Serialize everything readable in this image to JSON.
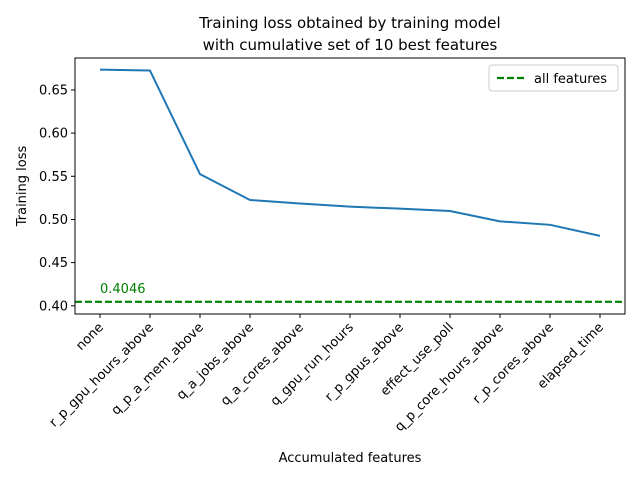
{
  "chart_data": {
    "type": "line",
    "title_line1": "Training loss obtained by training model",
    "title_line2": "with cumulative set of 10 best features",
    "xlabel": "Accumulated features",
    "ylabel": "Training loss",
    "categories": [
      "none",
      "r_p_gpu_hours_above",
      "q_p_a_mem_above",
      "q_a_jobs_above",
      "q_a_cores_above",
      "q_gpu_run_hours",
      "r_p_gpus_above",
      "effect_use_poll",
      "q_p_core_hours_above",
      "r_p_cores_above",
      "elapsed_time"
    ],
    "values": [
      0.6735,
      0.6725,
      0.5525,
      0.5225,
      0.5185,
      0.5148,
      0.5125,
      0.5098,
      0.4978,
      0.4938,
      0.481
    ],
    "ylim": [
      0.3905,
      0.687
    ],
    "yticks": [
      0.4,
      0.45,
      0.5,
      0.55,
      0.6,
      0.65
    ],
    "ytick_labels": [
      "0.40",
      "0.45",
      "0.50",
      "0.55",
      "0.60",
      "0.65"
    ],
    "line_color": "#1f77b4",
    "reference_line": {
      "label": "all features",
      "value": 0.4046,
      "value_label": "0.4046",
      "color": "#008000"
    },
    "legend_position": "top-right",
    "grid": false
  }
}
